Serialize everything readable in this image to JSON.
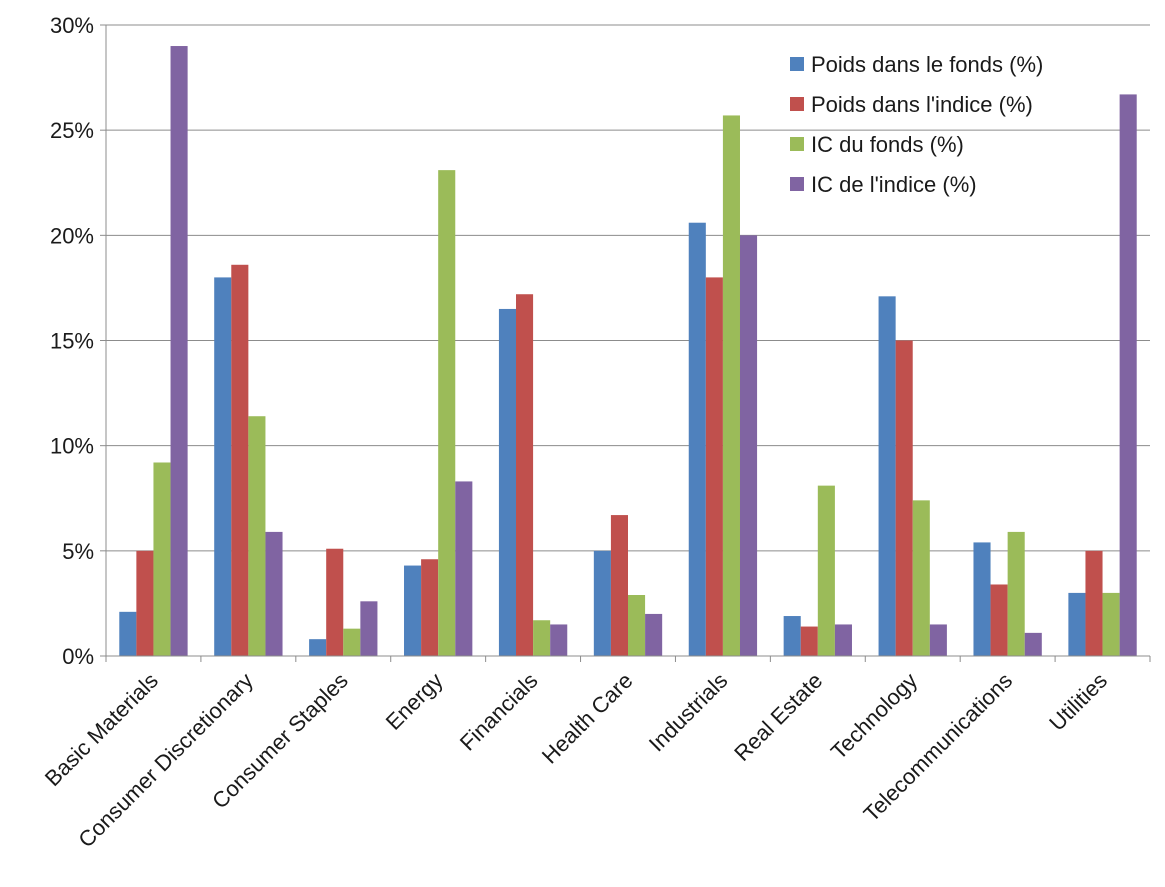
{
  "chart_data": {
    "type": "bar",
    "title": "",
    "xlabel": "",
    "ylabel": "",
    "ylim": [
      0,
      30
    ],
    "y_ticks": [
      0,
      5,
      10,
      15,
      20,
      25,
      30
    ],
    "y_tick_labels": [
      "0%",
      "5%",
      "10%",
      "15%",
      "20%",
      "25%",
      "30%"
    ],
    "grid": "horizontal",
    "legend_position": "top-right",
    "categories": [
      "Basic Materials",
      "Consumer Discretionary",
      "Consumer Staples",
      "Energy",
      "Financials",
      "Health Care",
      "Industrials",
      "Real Estate",
      "Technology",
      "Telecommunications",
      "Utilities"
    ],
    "series": [
      {
        "name": "Poids dans le fonds (%)",
        "color": "#4f81bd",
        "values": [
          2.1,
          18.0,
          0.8,
          4.3,
          16.5,
          5.0,
          20.6,
          1.9,
          17.1,
          5.4,
          3.0
        ]
      },
      {
        "name": "Poids dans l'indice (%)",
        "color": "#c0504d",
        "values": [
          5.0,
          18.6,
          5.1,
          4.6,
          17.2,
          6.7,
          18.0,
          1.4,
          15.0,
          3.4,
          5.0
        ]
      },
      {
        "name": "IC du fonds (%)",
        "color": "#9bbb59",
        "values": [
          9.2,
          11.4,
          1.3,
          23.1,
          1.7,
          2.9,
          25.7,
          8.1,
          7.4,
          5.9,
          3.0
        ]
      },
      {
        "name": "IC de l'indice (%)",
        "color": "#8064a2",
        "values": [
          29.0,
          5.9,
          2.6,
          8.3,
          1.5,
          2.0,
          20.0,
          1.5,
          1.5,
          1.1,
          26.7
        ]
      }
    ]
  }
}
